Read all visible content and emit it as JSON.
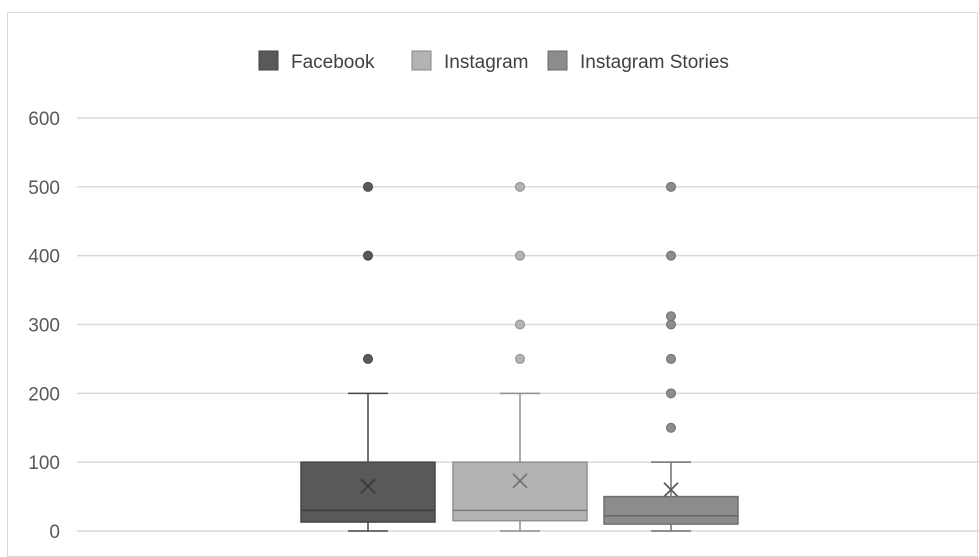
{
  "chart_data": {
    "type": "boxplot",
    "ylim": [
      0,
      600
    ],
    "yticks": [
      0,
      100,
      200,
      300,
      400,
      500,
      600
    ],
    "grid": true,
    "legend_position": "top",
    "series": [
      {
        "name": "Facebook",
        "color": "#595959",
        "whisker_low": 0,
        "q1": 13,
        "median": 30,
        "q3": 100,
        "whisker_high": 200,
        "mean": 65,
        "outliers": [
          250,
          400,
          500
        ]
      },
      {
        "name": "Instagram",
        "color": "#b3b3b3",
        "whisker_low": 0,
        "q1": 15,
        "median": 30,
        "q3": 100,
        "whisker_high": 200,
        "mean": 73,
        "outliers": [
          250,
          300,
          400,
          500
        ]
      },
      {
        "name": "Instagram Stories",
        "color": "#8c8c8c",
        "whisker_low": 0,
        "q1": 10,
        "median": 22,
        "q3": 50,
        "whisker_high": 100,
        "mean": 60,
        "outliers": [
          150,
          200,
          250,
          300,
          312,
          400,
          500
        ]
      }
    ]
  }
}
